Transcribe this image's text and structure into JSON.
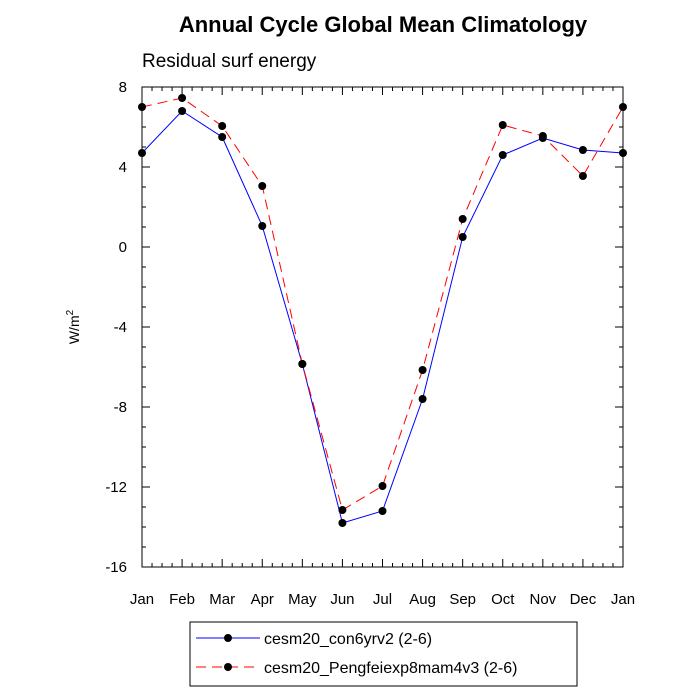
{
  "chart_data": {
    "type": "line",
    "title": "Annual Cycle Global Mean Climatology",
    "subtitle": "Residual surf energy",
    "ylabel": "W/m",
    "ylabel_superscript": "2",
    "xlabel": "",
    "categories": [
      "Jan",
      "Feb",
      "Mar",
      "Apr",
      "May",
      "Jun",
      "Jul",
      "Aug",
      "Sep",
      "Oct",
      "Nov",
      "Dec",
      "Jan"
    ],
    "ylim": [
      -16,
      8
    ],
    "yticks": [
      8,
      4,
      0,
      -4,
      -8,
      -12,
      -16
    ],
    "ytick_labels": [
      "8",
      "4",
      "0",
      "-4",
      "-8",
      "-12",
      "-16"
    ],
    "grid": false,
    "legend_position": "bottom",
    "series": [
      {
        "name": "cesm20_con6yrv2 (2-6)",
        "color": "#0000ff",
        "dash": "solid",
        "marker": "filled-circle",
        "values": [
          4.7,
          6.8,
          5.5,
          1.05,
          -5.85,
          -13.8,
          -13.2,
          -7.6,
          0.5,
          4.6,
          5.45,
          4.85,
          4.7
        ]
      },
      {
        "name": "cesm20_Pengfeiexp8mam4v3 (2-6)",
        "color": "#ff0000",
        "dash": "dashed",
        "marker": "filled-circle",
        "values": [
          7.0,
          7.45,
          6.05,
          3.05,
          -5.85,
          -13.15,
          -11.95,
          -6.15,
          1.4,
          6.1,
          5.55,
          3.55,
          7.0
        ]
      }
    ]
  }
}
